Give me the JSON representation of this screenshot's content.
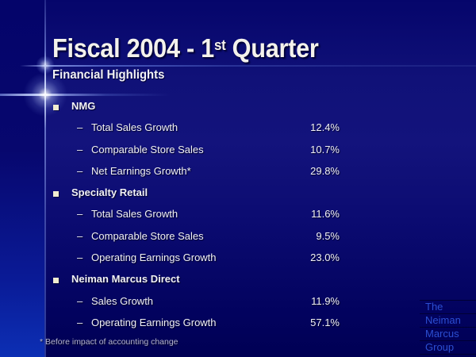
{
  "slide": {
    "title": {
      "prefix": "Fiscal 2004 - 1",
      "superscript": "st",
      "suffix": " Quarter"
    },
    "subtitle": "Financial Highlights",
    "markers": {
      "item_dash": "–"
    },
    "sections": [
      {
        "header": "NMG",
        "items": [
          {
            "label": "Total Sales Growth",
            "value": "12.4%"
          },
          {
            "label": "Comparable Store Sales",
            "value": "10.7%"
          },
          {
            "label": "Net Earnings Growth*",
            "value": "29.8%"
          }
        ]
      },
      {
        "header": "Specialty Retail",
        "items": [
          {
            "label": "Total Sales Growth",
            "value": "11.6%"
          },
          {
            "label": "Comparable Store Sales",
            "value": "9.5%"
          },
          {
            "label": "Operating Earnings Growth",
            "value": "23.0%"
          }
        ]
      },
      {
        "header": "Neiman Marcus Direct",
        "items": [
          {
            "label": "Sales Growth",
            "value": "11.9%"
          },
          {
            "label": "Operating Earnings Growth",
            "value": "57.1%"
          }
        ]
      }
    ],
    "footnote": "* Before impact of accounting change",
    "logo_lines": [
      "The",
      "Neiman",
      "Marcus",
      "Group"
    ],
    "colors": {
      "logo_text": "#2c4fd2",
      "background_center": "#13137c",
      "background_edge": "#000054",
      "left_band_bottom": "#0c2fb4",
      "accent_line": "#8896dc",
      "bullet": "#f0ecd0",
      "body_text": "#f1f1f6",
      "footnote_text": "#b5b5cf"
    }
  }
}
